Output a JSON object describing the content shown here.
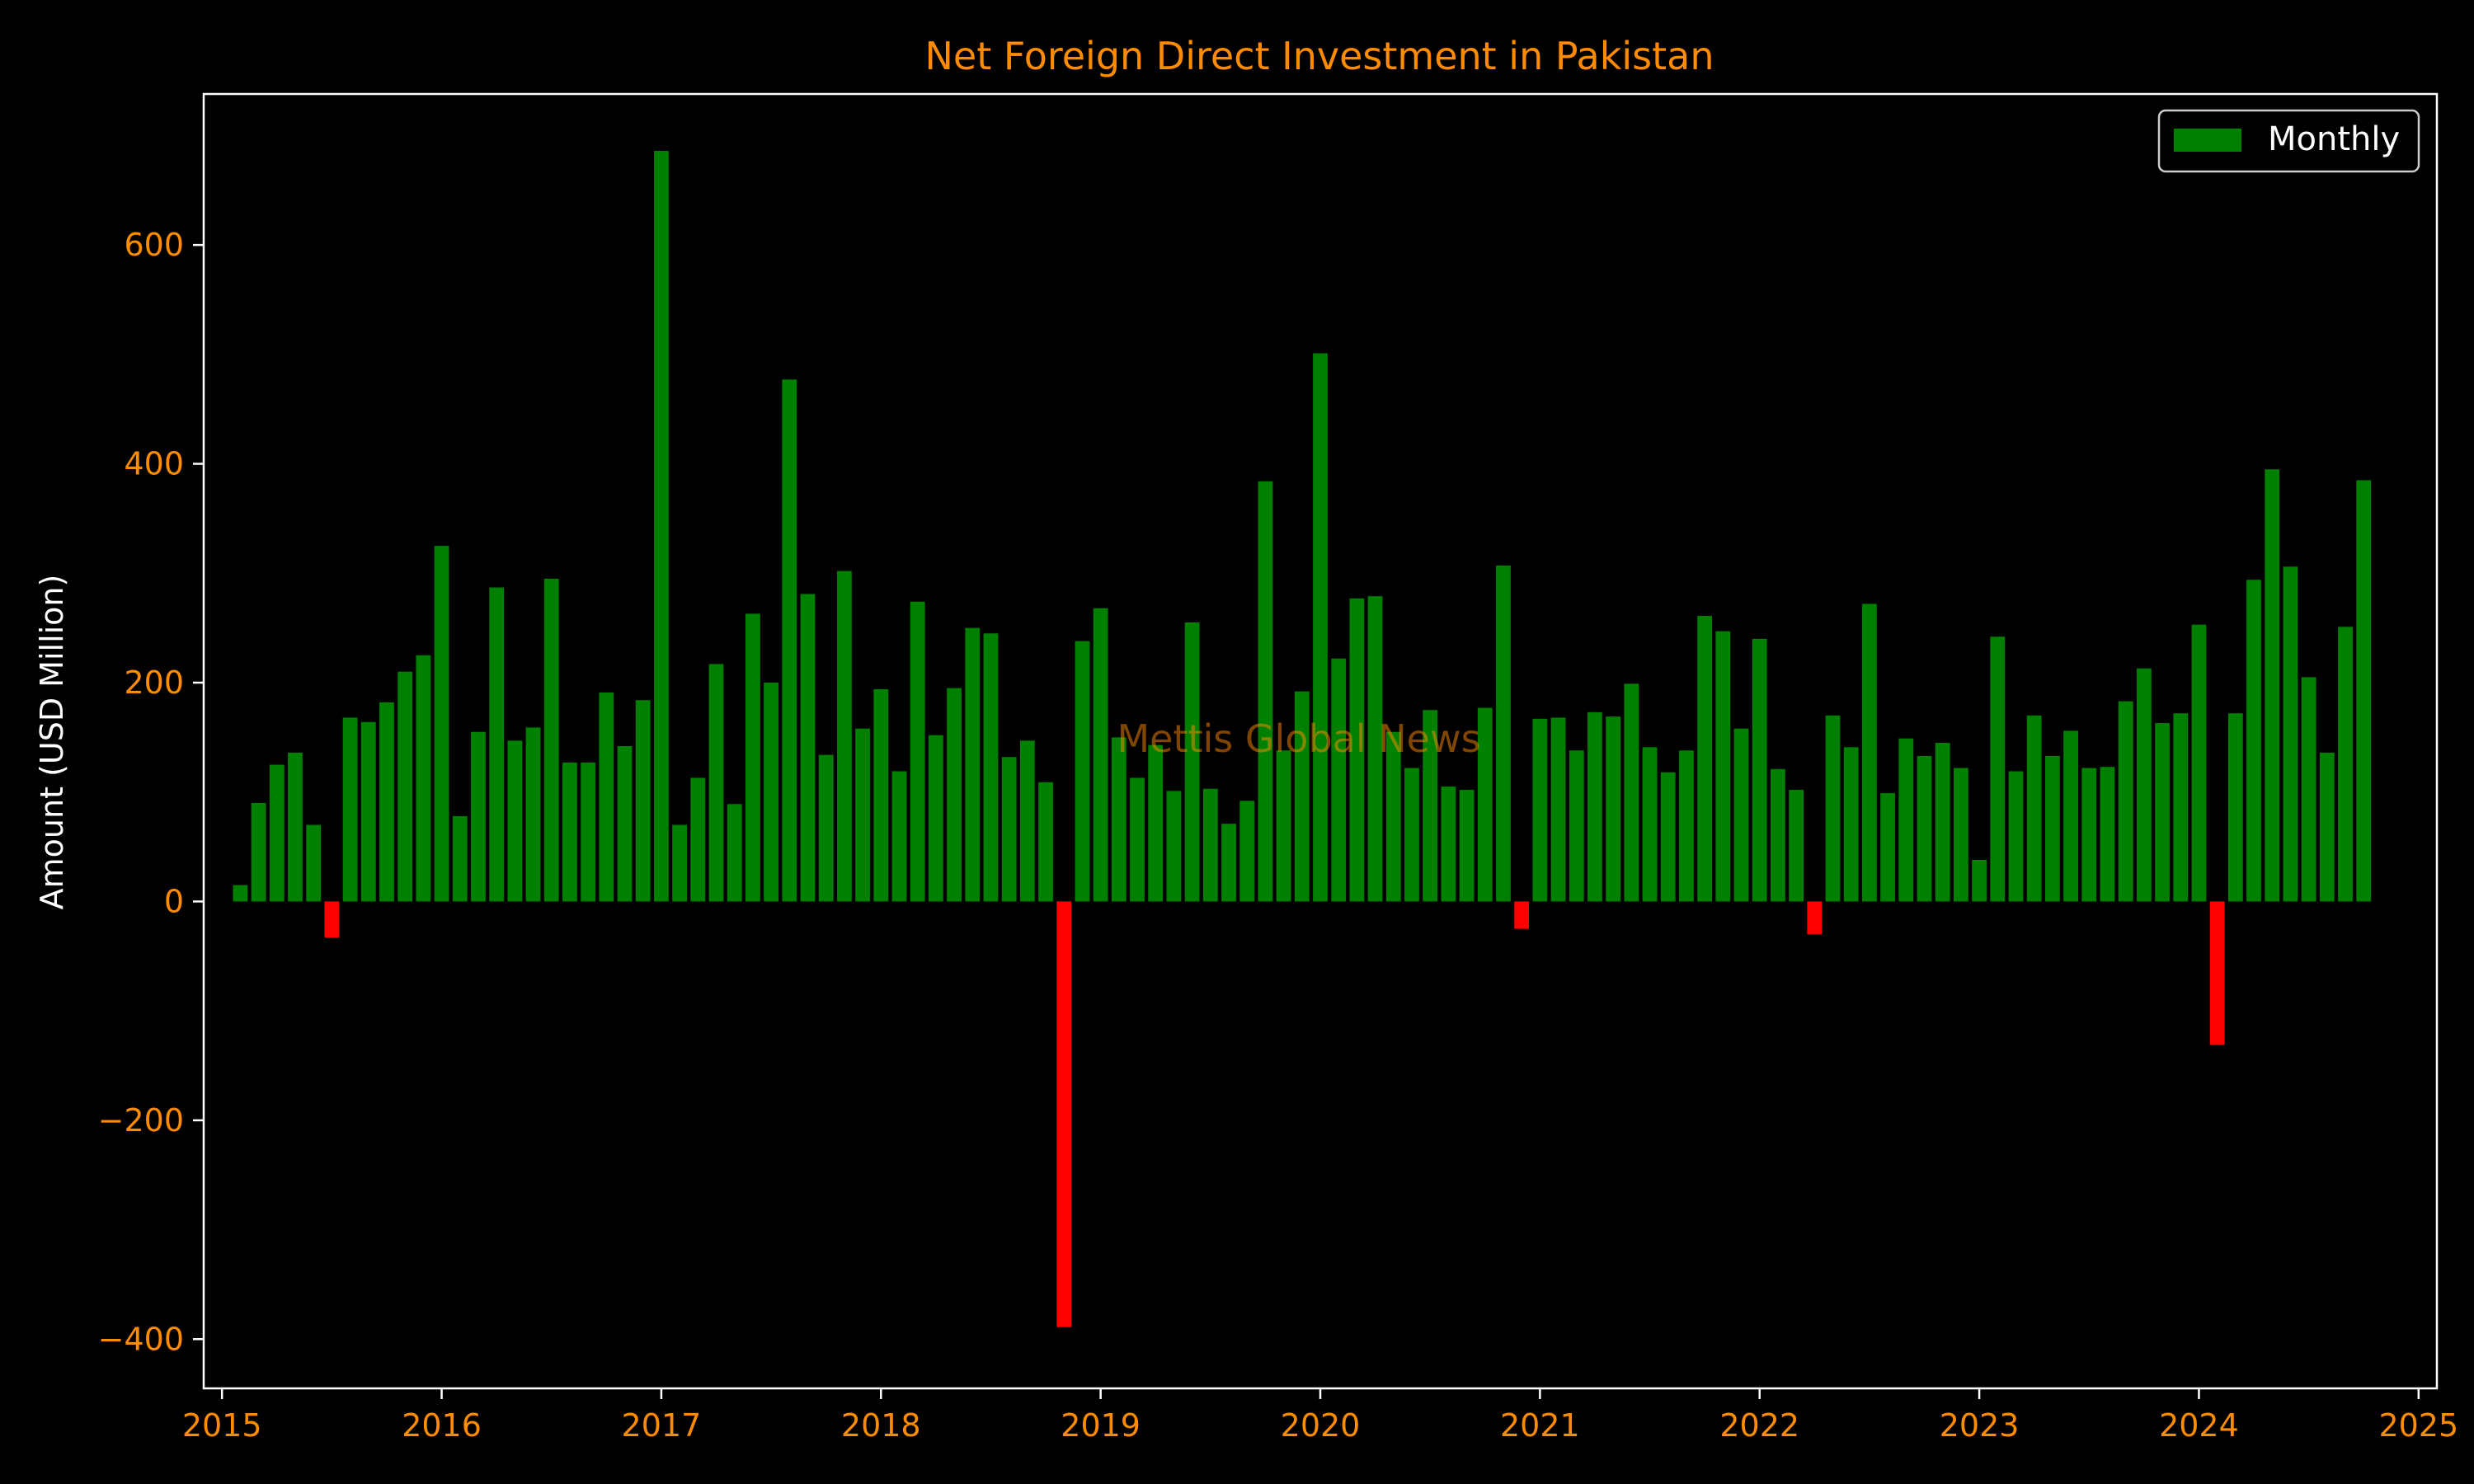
{
  "colors": {
    "positive": "#008000",
    "negative": "#ff0000",
    "accent": "#ff8c00",
    "background": "#000000",
    "frame": "#ffffff"
  },
  "watermark": "Mettis Global News",
  "chart_data": {
    "type": "bar",
    "title": "Net Foreign Direct Investment in Pakistan",
    "xlabel": "",
    "ylabel": "Amount (USD Million)",
    "xlim": [
      "2014-12",
      "2025-02"
    ],
    "ylim": [
      -445,
      738
    ],
    "x_ticks": [
      "2015",
      "2016",
      "2017",
      "2018",
      "2019",
      "2020",
      "2021",
      "2022",
      "2023",
      "2024",
      "2025"
    ],
    "y_ticks": [
      -400,
      -200,
      0,
      200,
      400,
      600
    ],
    "grid": false,
    "legend": {
      "position": "top-right",
      "entries": [
        "Monthly"
      ]
    },
    "series": [
      {
        "name": "Monthly",
        "x": [
          "2015-02",
          "2015-03",
          "2015-04",
          "2015-05",
          "2015-06",
          "2015-07",
          "2015-08",
          "2015-09",
          "2015-10",
          "2015-11",
          "2015-12",
          "2016-01",
          "2016-02",
          "2016-03",
          "2016-04",
          "2016-05",
          "2016-06",
          "2016-07",
          "2016-08",
          "2016-09",
          "2016-10",
          "2016-11",
          "2016-12",
          "2017-01",
          "2017-02",
          "2017-03",
          "2017-04",
          "2017-05",
          "2017-06",
          "2017-07",
          "2017-08",
          "2017-09",
          "2017-10",
          "2017-11",
          "2017-12",
          "2018-01",
          "2018-02",
          "2018-03",
          "2018-04",
          "2018-05",
          "2018-06",
          "2018-07",
          "2018-08",
          "2018-09",
          "2018-10",
          "2018-11",
          "2018-12",
          "2019-01",
          "2019-02",
          "2019-03",
          "2019-04",
          "2019-05",
          "2019-06",
          "2019-07",
          "2019-08",
          "2019-09",
          "2019-10",
          "2019-11",
          "2019-12",
          "2020-01",
          "2020-02",
          "2020-03",
          "2020-04",
          "2020-05",
          "2020-06",
          "2020-07",
          "2020-08",
          "2020-09",
          "2020-10",
          "2020-11",
          "2020-12",
          "2021-01",
          "2021-02",
          "2021-03",
          "2021-04",
          "2021-05",
          "2021-06",
          "2021-07",
          "2021-08",
          "2021-09",
          "2021-10",
          "2021-11",
          "2021-12",
          "2022-01",
          "2022-02",
          "2022-03",
          "2022-04",
          "2022-05",
          "2022-06",
          "2022-07",
          "2022-08",
          "2022-09",
          "2022-10",
          "2022-11",
          "2022-12",
          "2023-01",
          "2023-02",
          "2023-03",
          "2023-04",
          "2023-05",
          "2023-06",
          "2023-07",
          "2023-08",
          "2023-09",
          "2023-10",
          "2023-11",
          "2023-12",
          "2024-01",
          "2024-02",
          "2024-03",
          "2024-04",
          "2024-05",
          "2024-06",
          "2024-07",
          "2024-08",
          "2024-09",
          "2024-10"
        ],
        "values": [
          15,
          90,
          125,
          136,
          70,
          -33,
          168,
          164,
          182,
          210,
          225,
          325,
          78,
          155,
          287,
          147,
          159,
          295,
          127,
          127,
          191,
          142,
          184,
          686,
          70,
          113,
          217,
          89,
          263,
          200,
          477,
          281,
          134,
          302,
          158,
          194,
          119,
          274,
          152,
          195,
          250,
          245,
          132,
          147,
          109,
          -389,
          238,
          268,
          150,
          113,
          143,
          101,
          255,
          103,
          71,
          92,
          384,
          138,
          192,
          501,
          222,
          277,
          279,
          155,
          122,
          175,
          105,
          102,
          177,
          307,
          -25,
          167,
          168,
          138,
          173,
          169,
          199,
          141,
          118,
          138,
          261,
          247,
          158,
          240,
          121,
          102,
          -30,
          170,
          141,
          272,
          99,
          149,
          133,
          145,
          122,
          38,
          242,
          119,
          170,
          133,
          156,
          122,
          123,
          183,
          213,
          163,
          172,
          253,
          -131,
          172,
          294,
          395,
          306,
          205,
          136,
          251,
          385
        ]
      }
    ]
  }
}
